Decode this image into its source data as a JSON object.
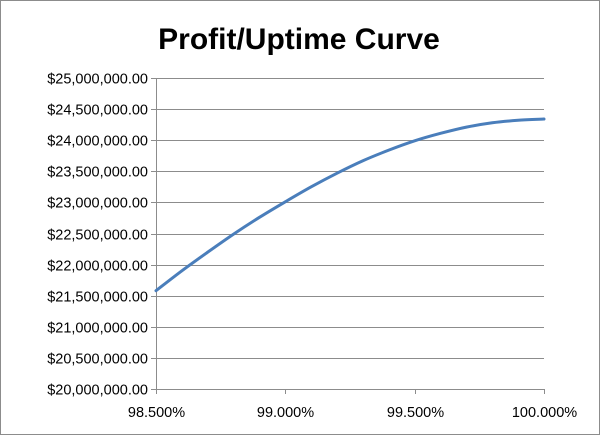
{
  "chart_data": {
    "type": "line",
    "title": "Profit/Uptime Curve",
    "xlabel": "",
    "ylabel": "",
    "xlim": [
      98.5,
      100.0
    ],
    "ylim": [
      20000000,
      25000000
    ],
    "x_ticks": [
      98.5,
      99.0,
      99.5,
      100.0
    ],
    "x_tick_labels": [
      "98.500%",
      "99.000%",
      "99.500%",
      "100.000%"
    ],
    "y_ticks": [
      20000000,
      20500000,
      21000000,
      21500000,
      22000000,
      22500000,
      23000000,
      23500000,
      24000000,
      24500000,
      25000000
    ],
    "y_tick_labels": [
      "$20,000,000.00",
      "$20,500,000.00",
      "$21,000,000.00",
      "$21,500,000.00",
      "$22,000,000.00",
      "$22,500,000.00",
      "$23,000,000.00",
      "$23,500,000.00",
      "$24,000,000.00",
      "$24,500,000.00",
      "$25,000,000.00"
    ],
    "grid": true,
    "legend": "none",
    "series": [
      {
        "color": "#4a7ebb",
        "x": [
          98.5,
          98.6,
          98.7,
          98.8,
          98.9,
          99.0,
          99.1,
          99.2,
          99.3,
          99.4,
          99.5,
          99.6,
          99.7,
          99.8,
          99.9,
          100.0
        ],
        "y": [
          21580000,
          21900000,
          22200000,
          22490000,
          22760000,
          23010000,
          23250000,
          23470000,
          23670000,
          23840000,
          23990000,
          24110000,
          24210000,
          24280000,
          24320000,
          24340000
        ]
      }
    ]
  }
}
